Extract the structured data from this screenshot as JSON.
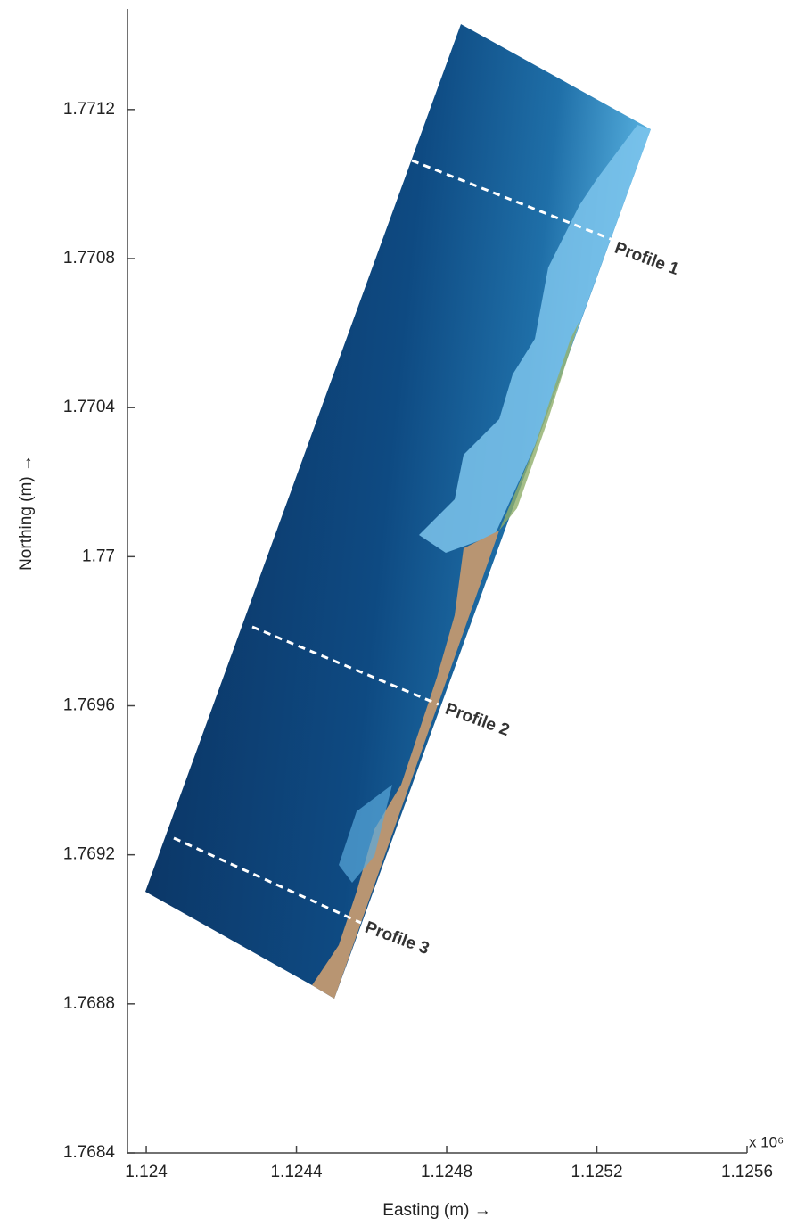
{
  "chart_data": {
    "type": "map",
    "xlabel": "Easting (m) →",
    "ylabel": "Northing (m) →",
    "x_exponent": "x 10⁶",
    "xlim": [
      1.12395,
      1.1256
    ],
    "ylim": [
      1.7684,
      1.77147
    ],
    "xticks": [
      1.124,
      1.1244,
      1.1248,
      1.1252,
      1.1256
    ],
    "yticks": [
      1.7684,
      1.7688,
      1.7692,
      1.7696,
      1.77,
      1.7704,
      1.7708,
      1.7712
    ],
    "annotations": [
      "Profile 1",
      "Profile 2",
      "Profile 3"
    ]
  }
}
